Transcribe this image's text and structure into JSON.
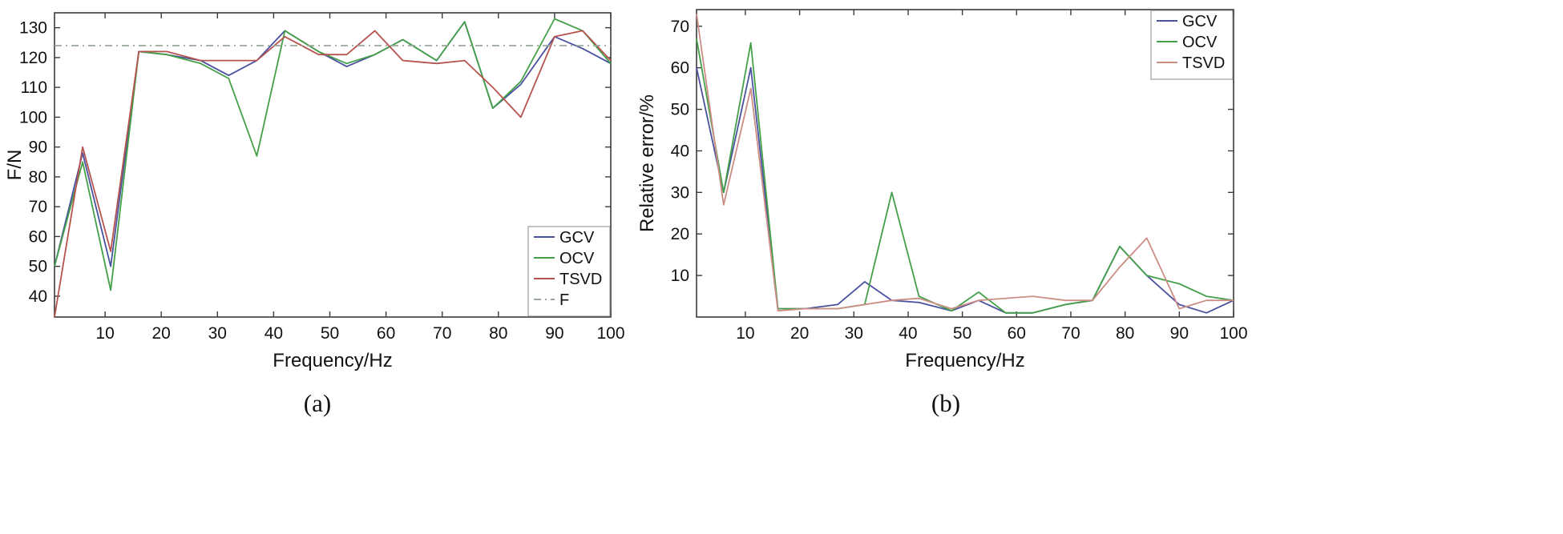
{
  "captions": {
    "a": "(a)",
    "b": "(b)"
  },
  "colors": {
    "axis": "#3a3a3a",
    "gcv": "#4a52a0",
    "ocv": "#44a048",
    "tsvd_a": "#b5534f",
    "tsvd_b": "#cc8d85",
    "f_reference": "#9aa89a"
  },
  "chart_data": [
    {
      "id": "chart-a",
      "type": "line",
      "title": "",
      "xlabel": "Frequency/Hz",
      "ylabel": "F/N",
      "xlim": [
        1,
        100
      ],
      "ylim": [
        33,
        135
      ],
      "xticks": [
        10,
        20,
        30,
        40,
        50,
        60,
        70,
        80,
        90,
        100
      ],
      "yticks": [
        40,
        50,
        60,
        70,
        80,
        90,
        100,
        110,
        120,
        130
      ],
      "grid": false,
      "legend_position": "bottom-right",
      "x": [
        1,
        6,
        11,
        16,
        21,
        27,
        32,
        37,
        42,
        48,
        53,
        58,
        63,
        69,
        74,
        79,
        84,
        90,
        95,
        100
      ],
      "series": [
        {
          "name": "GCV",
          "color": "#4a52a0",
          "style": "solid",
          "values": [
            50,
            88,
            50,
            122,
            121,
            119,
            114,
            119,
            129,
            122,
            117,
            121,
            126,
            119,
            132,
            103,
            111,
            127,
            123,
            118
          ]
        },
        {
          "name": "OCV",
          "color": "#44a048",
          "style": "solid",
          "values": [
            50,
            85,
            42,
            122,
            121,
            118,
            113,
            87,
            129,
            122,
            118,
            121,
            126,
            119,
            132,
            103,
            112,
            133,
            129,
            118
          ]
        },
        {
          "name": "TSVD",
          "color": "#b5534f",
          "style": "solid",
          "values": [
            33,
            90,
            55,
            122,
            122,
            119,
            119,
            119,
            127,
            121,
            121,
            129,
            119,
            118,
            119,
            110,
            100,
            127,
            129,
            119
          ]
        },
        {
          "name": "F",
          "color": "#9aa89a",
          "style": "dashdot",
          "values": [
            124,
            124,
            124,
            124,
            124,
            124,
            124,
            124,
            124,
            124,
            124,
            124,
            124,
            124,
            124,
            124,
            124,
            124,
            124,
            124
          ]
        }
      ]
    },
    {
      "id": "chart-b",
      "type": "line",
      "title": "",
      "xlabel": "Frequency/Hz",
      "ylabel": "Relative error/%",
      "xlim": [
        1,
        100
      ],
      "ylim": [
        0,
        74
      ],
      "xticks": [
        10,
        20,
        30,
        40,
        50,
        60,
        70,
        80,
        90,
        100
      ],
      "yticks": [
        10,
        20,
        30,
        40,
        50,
        60,
        70
      ],
      "grid": false,
      "legend_position": "top-right",
      "x": [
        1,
        6,
        11,
        16,
        21,
        27,
        32,
        37,
        42,
        48,
        53,
        58,
        63,
        69,
        74,
        79,
        84,
        90,
        95,
        100
      ],
      "series": [
        {
          "name": "GCV",
          "color": "#4a52a0",
          "style": "solid",
          "values": [
            60,
            30,
            60,
            2,
            2,
            3,
            8.5,
            4,
            3.5,
            1.5,
            4,
            1,
            1,
            3,
            4,
            17,
            10,
            3,
            1,
            4
          ]
        },
        {
          "name": "OCV",
          "color": "#44a048",
          "style": "solid",
          "values": [
            67,
            30,
            66,
            2,
            2,
            2,
            3,
            30,
            5,
            1.5,
            6,
            1,
            1,
            3,
            4,
            17,
            10,
            8,
            5,
            4
          ]
        },
        {
          "name": "TSVD",
          "color": "#cc8d85",
          "style": "solid",
          "values": [
            73,
            27,
            55,
            1.5,
            2,
            2,
            3,
            4,
            4.5,
            2,
            4,
            4.5,
            5,
            4,
            4,
            12,
            19,
            2,
            4,
            4
          ]
        }
      ]
    }
  ]
}
